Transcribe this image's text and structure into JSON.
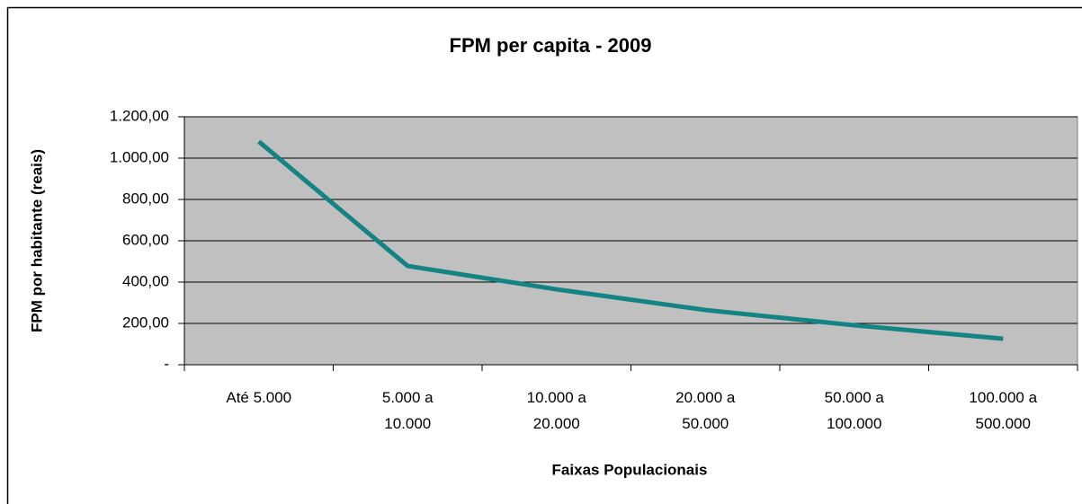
{
  "chart_data": {
    "type": "line",
    "title": "FPM per capita - 2009",
    "x_label": "Faixas Populacionais",
    "y_label": "FPM por habitante (reais)",
    "categories": [
      "Até 5.000",
      "5.000 a 10.000",
      "10.000 a 20.000",
      "20.000 a 50.000",
      "50.000 a 100.000",
      "100.000 a 500.000"
    ],
    "values": [
      1080,
      478,
      365,
      265,
      191,
      126
    ],
    "color": "#138383",
    "ylim": [
      0,
      1200
    ],
    "yticks": [
      {
        "value": 0,
        "label": "-"
      },
      {
        "value": 200,
        "label": "200,00"
      },
      {
        "value": 400,
        "label": "400,00"
      },
      {
        "value": 600,
        "label": "600,00"
      },
      {
        "value": 800,
        "label": "800,00"
      },
      {
        "value": 1000,
        "label": "1.000,00"
      },
      {
        "value": 1200,
        "label": "1.200,00"
      }
    ],
    "grid": true
  }
}
